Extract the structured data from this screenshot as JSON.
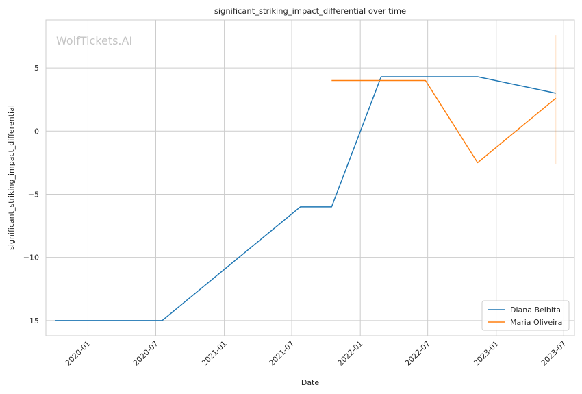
{
  "chart_data": {
    "type": "line",
    "title": "significant_striking_impact_differential over time",
    "xlabel": "Date",
    "ylabel": "significant_striking_impact_differential",
    "watermark": "WolfTickets.AI",
    "x_ticks": [
      "2020-01",
      "2020-07",
      "2021-01",
      "2021-07",
      "2022-01",
      "2022-07",
      "2023-01",
      "2023-07"
    ],
    "y_ticks": [
      "5",
      "0",
      "−5",
      "−10",
      "−15"
    ],
    "xlim": [
      "2019-09-10",
      "2023-07-30"
    ],
    "ylim": [
      -16.2,
      8.8
    ],
    "grid": true,
    "legend_position": "bottom-right",
    "series": [
      {
        "name": "Diana Belbita",
        "color": "#1f77b4",
        "points": [
          {
            "x": "2019-10-05",
            "y": -15
          },
          {
            "x": "2020-07-18",
            "y": -15
          },
          {
            "x": "2021-07-24",
            "y": -6
          },
          {
            "x": "2021-10-16",
            "y": -6
          },
          {
            "x": "2022-02-26",
            "y": 4.3
          },
          {
            "x": "2022-11-12",
            "y": 4.3
          },
          {
            "x": "2023-06-10",
            "y": 3
          }
        ]
      },
      {
        "name": "Maria Oliveira",
        "color": "#ff7f0e",
        "points": [
          {
            "x": "2021-10-16",
            "y": 4
          },
          {
            "x": "2022-06-25",
            "y": 4
          },
          {
            "x": "2022-11-12",
            "y": -2.5
          },
          {
            "x": "2023-06-10",
            "y": 2.6
          }
        ],
        "error_bar": {
          "x": "2023-06-10",
          "low": -2.6,
          "high": 7.6
        }
      }
    ]
  }
}
